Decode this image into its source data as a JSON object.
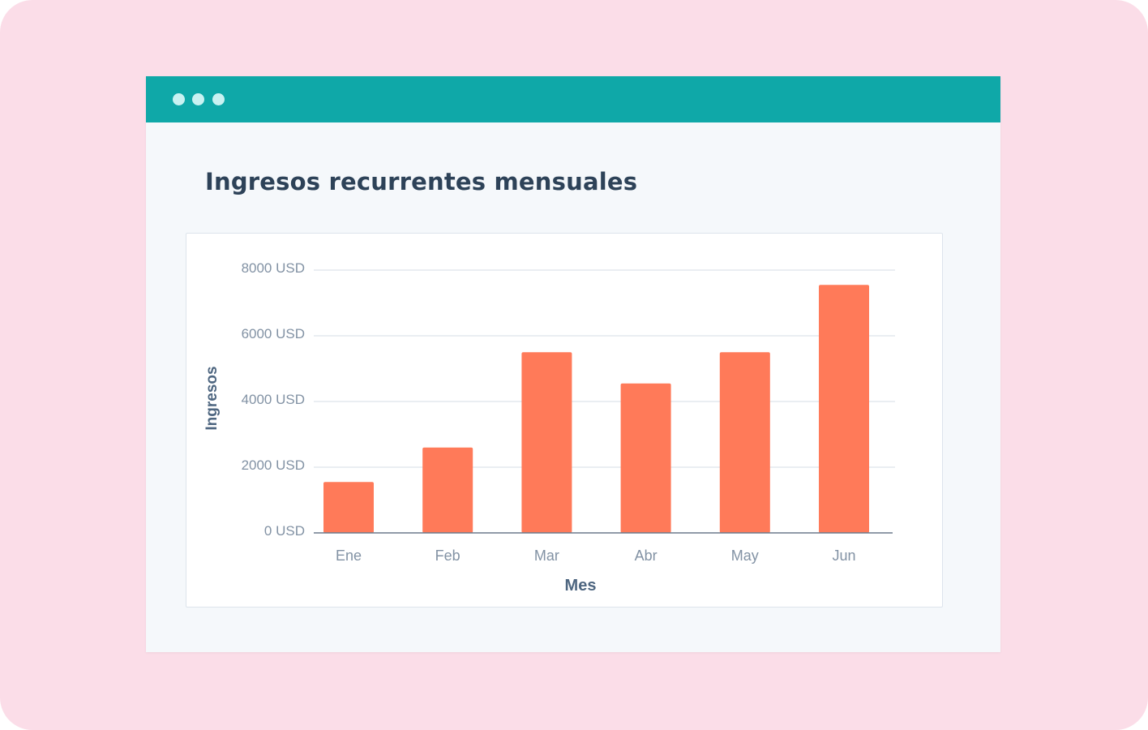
{
  "window": {
    "title": "Ingresos recurrentes mensuales"
  },
  "colors": {
    "background": "#fbdde8",
    "titlebar": "#0fa8a8",
    "bar": "#ff7a59",
    "title_text": "#2d4258"
  },
  "chart_data": {
    "type": "bar",
    "categories": [
      "Ene",
      "Feb",
      "Mar",
      "Abr",
      "May",
      "Jun"
    ],
    "values": [
      1550,
      2600,
      5500,
      4550,
      5500,
      7550
    ],
    "xlabel": "Mes",
    "ylabel": "Ingresos",
    "ylim": [
      0,
      8000
    ],
    "yticks": [
      0,
      2000,
      4000,
      6000,
      8000
    ],
    "ytick_labels": [
      "0 USD",
      "2000 USD",
      "4000 USD",
      "6000 USD",
      "8000 USD"
    ],
    "grid": true
  }
}
